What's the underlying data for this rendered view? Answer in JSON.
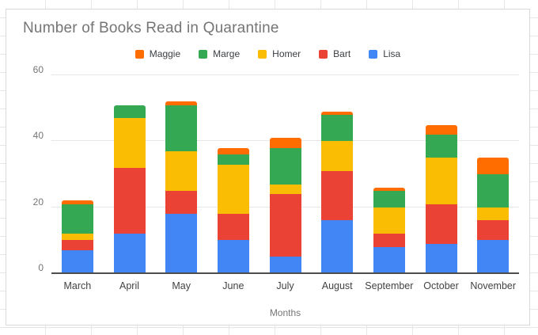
{
  "chart_data": {
    "type": "bar",
    "stacked": true,
    "title": "Number of Books Read in Quarantine",
    "xlabel": "Months",
    "ylabel": "",
    "categories": [
      "March",
      "April",
      "May",
      "June",
      "July",
      "August",
      "September",
      "October",
      "November"
    ],
    "series": [
      {
        "name": "Lisa",
        "color": "#4285F4",
        "values": [
          7,
          12,
          18,
          10,
          5,
          16,
          8,
          9,
          10
        ]
      },
      {
        "name": "Bart",
        "color": "#EA4335",
        "values": [
          3,
          20,
          7,
          8,
          19,
          15,
          4,
          12,
          6
        ]
      },
      {
        "name": "Homer",
        "color": "#FBBC04",
        "values": [
          2,
          15,
          12,
          15,
          3,
          9,
          8,
          14,
          4
        ]
      },
      {
        "name": "Marge",
        "color": "#34A853",
        "values": [
          9,
          4,
          14,
          3,
          11,
          8,
          5,
          7,
          10
        ]
      },
      {
        "name": "Maggie",
        "color": "#FF6D01",
        "values": [
          1,
          0,
          1,
          2,
          3,
          1,
          1,
          3,
          5
        ]
      }
    ],
    "stack_order_note": "series listed bottom-to-top",
    "legend_order": [
      "Maggie",
      "Marge",
      "Homer",
      "Bart",
      "Lisa"
    ],
    "legend_position": "top",
    "y_ticks": [
      0,
      20,
      40,
      60
    ],
    "ylim": [
      0,
      60
    ],
    "grid": true
  }
}
